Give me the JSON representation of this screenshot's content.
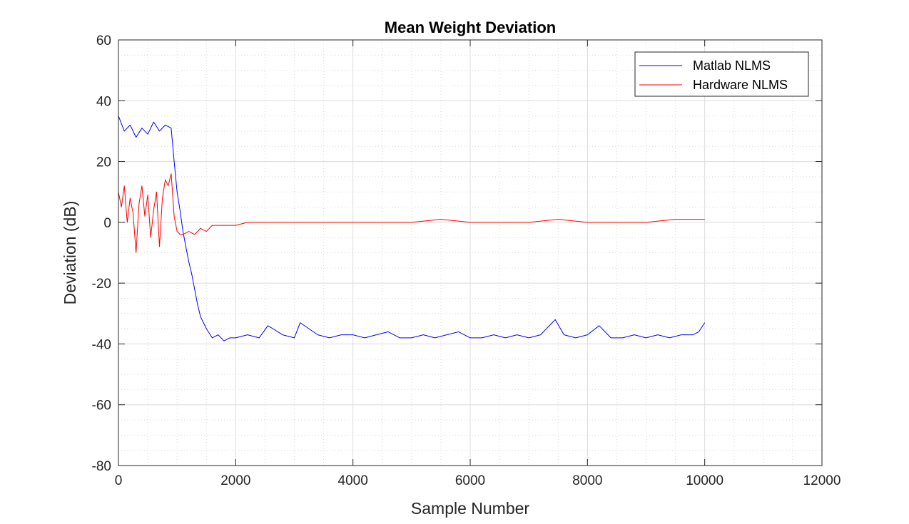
{
  "chart_data": {
    "type": "line",
    "title": "Mean Weight Deviation",
    "xlabel": "Sample Number",
    "ylabel": "Deviation (dB)",
    "xlim": [
      0,
      12000
    ],
    "ylim": [
      -80,
      60
    ],
    "xticks": [
      0,
      2000,
      4000,
      6000,
      8000,
      10000,
      12000
    ],
    "yticks": [
      -80,
      -60,
      -40,
      -20,
      0,
      20,
      40,
      60
    ],
    "x_tick_labels": [
      "0",
      "2000",
      "4000",
      "6000",
      "8000",
      "10000",
      "12000"
    ],
    "y_tick_labels": [
      "-80",
      "-60",
      "-40",
      "-20",
      "0",
      "20",
      "40",
      "60"
    ],
    "grid": true,
    "minor_grid": true,
    "legend_position": "top-right",
    "series": [
      {
        "name": "Matlab NLMS",
        "color": "#0000ff",
        "x": [
          0,
          100,
          200,
          300,
          400,
          500,
          600,
          700,
          800,
          900,
          950,
          1000,
          1050,
          1100,
          1150,
          1200,
          1250,
          1300,
          1350,
          1400,
          1500,
          1600,
          1700,
          1800,
          1900,
          2000,
          2200,
          2400,
          2550,
          2800,
          3000,
          3100,
          3400,
          3600,
          3800,
          4000,
          4200,
          4400,
          4600,
          4800,
          5000,
          5200,
          5400,
          5600,
          5800,
          6000,
          6200,
          6400,
          6600,
          6800,
          7000,
          7200,
          7400,
          7450,
          7600,
          7800,
          8000,
          8200,
          8400,
          8600,
          8800,
          9000,
          9200,
          9400,
          9600,
          9800,
          9900,
          10000
        ],
        "values": [
          35,
          30,
          32,
          28,
          31,
          29,
          33,
          30,
          32,
          31,
          20,
          10,
          4,
          -3,
          -8,
          -13,
          -17,
          -22,
          -27,
          -31,
          -35,
          -38,
          -37,
          -39,
          -38,
          -38,
          -37,
          -38,
          -34,
          -37,
          -38,
          -33,
          -37,
          -38,
          -37,
          -37,
          -38,
          -37,
          -36,
          -38,
          -38,
          -37,
          -38,
          -37,
          -36,
          -38,
          -38,
          -37,
          -38,
          -37,
          -38,
          -37,
          -33,
          -32,
          -37,
          -38,
          -37,
          -34,
          -38,
          -38,
          -37,
          -38,
          -37,
          -38,
          -37,
          -37,
          -36,
          -33
        ]
      },
      {
        "name": "Hardware NLMS",
        "color": "#ff0000",
        "x": [
          0,
          50,
          100,
          150,
          200,
          250,
          300,
          350,
          400,
          450,
          500,
          550,
          600,
          650,
          700,
          750,
          800,
          850,
          900,
          950,
          1000,
          1050,
          1100,
          1200,
          1300,
          1400,
          1500,
          1600,
          1800,
          2000,
          2200,
          2500,
          2800,
          3000,
          3500,
          4000,
          4500,
          5000,
          5500,
          6000,
          6500,
          7000,
          7500,
          8000,
          8500,
          9000,
          9500,
          10000
        ],
        "values": [
          10,
          5,
          12,
          0,
          8,
          3,
          -10,
          6,
          12,
          2,
          9,
          -5,
          4,
          10,
          -8,
          8,
          14,
          12,
          16,
          2,
          -3,
          -4,
          -4,
          -3,
          -4,
          -2,
          -3,
          -1,
          -1,
          -1,
          0,
          0,
          0,
          0,
          0,
          0,
          0,
          0,
          1,
          0,
          0,
          0,
          1,
          0,
          0,
          0,
          1,
          1
        ]
      }
    ]
  }
}
